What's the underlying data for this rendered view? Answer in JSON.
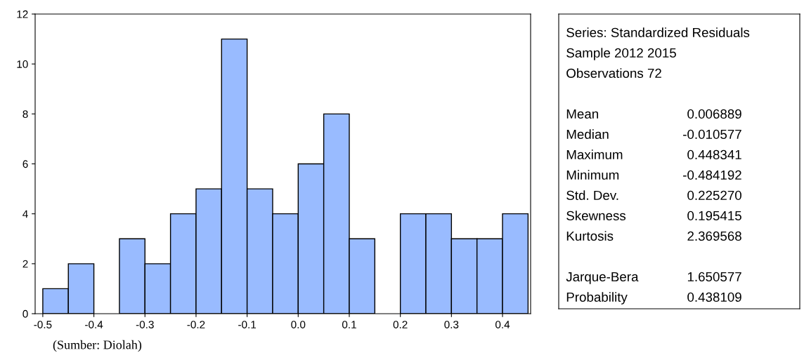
{
  "chart_data": [
    {
      "type": "histogram",
      "bins": [
        -0.5,
        -0.45,
        -0.4,
        -0.35,
        -0.3,
        -0.25,
        -0.2,
        -0.15,
        -0.1,
        -0.05,
        0.0,
        0.05,
        0.1,
        0.15,
        0.2,
        0.25,
        0.3,
        0.35,
        0.4,
        0.45
      ],
      "values": [
        1,
        2,
        0,
        3,
        2,
        4,
        5,
        11,
        5,
        4,
        6,
        8,
        3,
        0,
        4,
        4,
        3,
        3,
        4
      ],
      "color": "#99bbff",
      "xlim": [
        -0.515,
        0.455
      ],
      "xticks": [
        -0.5,
        -0.4,
        -0.3,
        -0.2,
        -0.1,
        {
          "value": 0,
          "label": "0.0"
        },
        0.1,
        0.2,
        0.3,
        0.4
      ],
      "ylim": [
        0,
        12
      ],
      "yticks": [
        0,
        2,
        4,
        6,
        8,
        10,
        12
      ],
      "grid": false,
      "legend": false,
      "annotations": [
        "(Sumber: Diolah)"
      ]
    },
    {
      "type": "other",
      "title": "Series: Standardized Residuals",
      "annotations": [
        "Sample 2012 2015",
        "Observations 72"
      ],
      "categories": [
        "Mean",
        "Median",
        "Maximum",
        "Minimum",
        "Std. Dev.",
        "Skewness",
        "Kurtosis",
        null,
        "Jarque-Bera",
        "Probability"
      ],
      "value_labels": [
        "0.006889",
        "-0.010577",
        "0.448341",
        "-0.484192",
        "0.225270",
        "0.195415",
        "2.369568",
        null,
        "1.650577",
        "0.438109"
      ]
    }
  ]
}
